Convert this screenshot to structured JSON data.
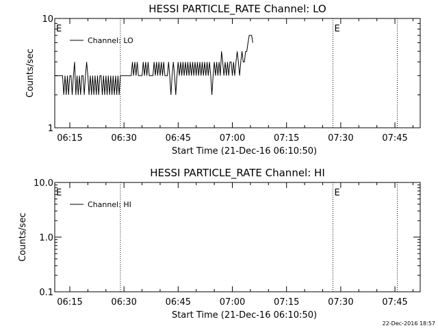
{
  "footer_stamp": "22-Dec-2016 18:57",
  "chart_data": [
    {
      "type": "line",
      "title": "HESSI PARTICLE_RATE Channel: LO",
      "xlabel": "Start Time (21-Dec-16 06:10:50)",
      "ylabel": "Counts/sec",
      "y_scale": "log",
      "ylim": [
        1,
        10
      ],
      "y_ticks": [
        {
          "value": 1,
          "label": "1"
        },
        {
          "value": 10,
          "label": "10"
        }
      ],
      "xlim": [
        "06:10:50",
        "07:52:00"
      ],
      "x_ticks": [
        "06:15",
        "06:30",
        "06:45",
        "07:00",
        "07:15",
        "07:30",
        "07:45"
      ],
      "markers": [
        {
          "time": "06:29:00",
          "label": "",
          "style": "dotted"
        },
        {
          "time": "07:27:50",
          "label": "E",
          "style": "dotted"
        },
        {
          "time": "07:45:40",
          "label": "",
          "style": "dotted"
        },
        {
          "time": "06:10:50",
          "label": "E",
          "style": "none"
        }
      ],
      "legend": "top-left",
      "series": [
        {
          "name": "Channel: LO",
          "color": "#000000",
          "points": [
            [
              "06:10:50",
              3
            ],
            [
              "06:13:00",
              3
            ],
            [
              "06:13:20",
              2
            ],
            [
              "06:13:40",
              3
            ],
            [
              "06:14:00",
              2
            ],
            [
              "06:14:20",
              3
            ],
            [
              "06:14:40",
              2
            ],
            [
              "06:15:00",
              3
            ],
            [
              "06:15:20",
              3
            ],
            [
              "06:15:40",
              2
            ],
            [
              "06:16:00",
              3
            ],
            [
              "06:16:20",
              4
            ],
            [
              "06:16:40",
              2
            ],
            [
              "06:17:00",
              3
            ],
            [
              "06:17:20",
              2
            ],
            [
              "06:17:40",
              3
            ],
            [
              "06:18:00",
              2
            ],
            [
              "06:18:20",
              3
            ],
            [
              "06:18:40",
              3
            ],
            [
              "06:19:00",
              2
            ],
            [
              "06:19:20",
              3
            ],
            [
              "06:19:40",
              4
            ],
            [
              "06:20:00",
              3
            ],
            [
              "06:20:20",
              2
            ],
            [
              "06:20:40",
              3
            ],
            [
              "06:21:00",
              2
            ],
            [
              "06:21:20",
              3
            ],
            [
              "06:21:40",
              2
            ],
            [
              "06:22:00",
              3
            ],
            [
              "06:22:20",
              2
            ],
            [
              "06:22:40",
              3
            ],
            [
              "06:23:00",
              2
            ],
            [
              "06:23:20",
              3
            ],
            [
              "06:23:40",
              3
            ],
            [
              "06:24:00",
              2
            ],
            [
              "06:24:20",
              3
            ],
            [
              "06:24:40",
              2
            ],
            [
              "06:25:00",
              3
            ],
            [
              "06:25:20",
              2
            ],
            [
              "06:25:40",
              3
            ],
            [
              "06:26:00",
              2
            ],
            [
              "06:26:20",
              3
            ],
            [
              "06:26:40",
              2
            ],
            [
              "06:27:00",
              3
            ],
            [
              "06:27:20",
              2
            ],
            [
              "06:27:40",
              3
            ],
            [
              "06:28:00",
              2
            ],
            [
              "06:28:20",
              3
            ],
            [
              "06:28:40",
              2
            ],
            [
              "06:29:00",
              3
            ],
            [
              "06:32:00",
              3
            ],
            [
              "06:32:20",
              4
            ],
            [
              "06:32:40",
              3
            ],
            [
              "06:33:00",
              4
            ],
            [
              "06:33:20",
              3
            ],
            [
              "06:33:40",
              4
            ],
            [
              "06:34:00",
              3
            ],
            [
              "06:35:00",
              3
            ],
            [
              "06:35:20",
              4
            ],
            [
              "06:35:40",
              3
            ],
            [
              "06:36:00",
              4
            ],
            [
              "06:36:20",
              3
            ],
            [
              "06:36:40",
              4
            ],
            [
              "06:37:00",
              3
            ],
            [
              "06:38:00",
              3
            ],
            [
              "06:38:20",
              4
            ],
            [
              "06:38:40",
              3
            ],
            [
              "06:39:00",
              4
            ],
            [
              "06:39:20",
              3
            ],
            [
              "06:39:40",
              4
            ],
            [
              "06:40:00",
              3
            ],
            [
              "06:40:20",
              4
            ],
            [
              "06:40:40",
              3
            ],
            [
              "06:41:00",
              4
            ],
            [
              "06:41:20",
              3
            ],
            [
              "06:42:00",
              3
            ],
            [
              "06:42:20",
              4
            ],
            [
              "06:42:40",
              3
            ],
            [
              "06:43:00",
              2
            ],
            [
              "06:43:20",
              3
            ],
            [
              "06:43:40",
              4
            ],
            [
              "06:44:00",
              3
            ],
            [
              "06:44:20",
              2
            ],
            [
              "06:44:40",
              3
            ],
            [
              "06:45:00",
              4
            ],
            [
              "06:45:20",
              3
            ],
            [
              "06:45:40",
              4
            ],
            [
              "06:46:00",
              3
            ],
            [
              "06:46:20",
              4
            ],
            [
              "06:46:40",
              3
            ],
            [
              "06:47:00",
              4
            ],
            [
              "06:47:20",
              3
            ],
            [
              "06:47:40",
              4
            ],
            [
              "06:48:00",
              3
            ],
            [
              "06:48:20",
              4
            ],
            [
              "06:48:40",
              3
            ],
            [
              "06:49:00",
              4
            ],
            [
              "06:49:20",
              3
            ],
            [
              "06:49:40",
              4
            ],
            [
              "06:50:00",
              3
            ],
            [
              "06:50:20",
              4
            ],
            [
              "06:50:40",
              3
            ],
            [
              "06:51:00",
              4
            ],
            [
              "06:51:20",
              3
            ],
            [
              "06:51:40",
              4
            ],
            [
              "06:52:00",
              3
            ],
            [
              "06:52:20",
              4
            ],
            [
              "06:52:40",
              3
            ],
            [
              "06:53:00",
              4
            ],
            [
              "06:53:20",
              3
            ],
            [
              "06:53:40",
              4
            ],
            [
              "06:54:00",
              3
            ],
            [
              "06:54:20",
              2
            ],
            [
              "06:54:40",
              3
            ],
            [
              "06:55:00",
              4
            ],
            [
              "06:55:20",
              3
            ],
            [
              "06:55:40",
              4
            ],
            [
              "06:56:00",
              3
            ],
            [
              "06:56:20",
              4
            ],
            [
              "06:56:40",
              3
            ],
            [
              "06:57:00",
              5
            ],
            [
              "06:57:20",
              4
            ],
            [
              "06:57:40",
              3
            ],
            [
              "06:58:00",
              4
            ],
            [
              "06:58:20",
              3
            ],
            [
              "06:58:40",
              4
            ],
            [
              "06:59:00",
              3
            ],
            [
              "06:59:20",
              4
            ],
            [
              "06:59:40",
              4
            ],
            [
              "07:00:00",
              3
            ],
            [
              "07:00:20",
              4
            ],
            [
              "07:00:40",
              3
            ],
            [
              "07:01:00",
              4
            ],
            [
              "07:01:20",
              5
            ],
            [
              "07:01:40",
              4
            ],
            [
              "07:02:00",
              3
            ],
            [
              "07:02:20",
              4
            ],
            [
              "07:02:40",
              5
            ],
            [
              "07:03:00",
              4
            ],
            [
              "07:03:20",
              4
            ],
            [
              "07:03:40",
              5
            ],
            [
              "07:04:00",
              5
            ],
            [
              "07:04:20",
              6
            ],
            [
              "07:04:40",
              7
            ],
            [
              "07:05:00",
              7
            ],
            [
              "07:05:20",
              7
            ],
            [
              "07:05:40",
              6
            ]
          ]
        }
      ]
    },
    {
      "type": "line",
      "title": "HESSI PARTICLE_RATE Channel: HI",
      "xlabel": "Start Time (21-Dec-16 06:10:50)",
      "ylabel": "Counts/sec",
      "y_scale": "log",
      "ylim": [
        0.1,
        10
      ],
      "y_ticks": [
        {
          "value": 0.1,
          "label": "0.1"
        },
        {
          "value": 1,
          "label": "1.0"
        },
        {
          "value": 10,
          "label": "10.0"
        }
      ],
      "xlim": [
        "06:10:50",
        "07:52:00"
      ],
      "x_ticks": [
        "06:15",
        "06:30",
        "06:45",
        "07:00",
        "07:15",
        "07:30",
        "07:45"
      ],
      "markers": [
        {
          "time": "06:29:00",
          "label": "",
          "style": "dotted"
        },
        {
          "time": "07:27:50",
          "label": "E",
          "style": "dotted"
        },
        {
          "time": "07:45:40",
          "label": "",
          "style": "dotted"
        },
        {
          "time": "06:10:50",
          "label": "E",
          "style": "none"
        }
      ],
      "legend": "top-left",
      "series": [
        {
          "name": "Channel: HI",
          "color": "#000000",
          "points": []
        }
      ]
    }
  ]
}
